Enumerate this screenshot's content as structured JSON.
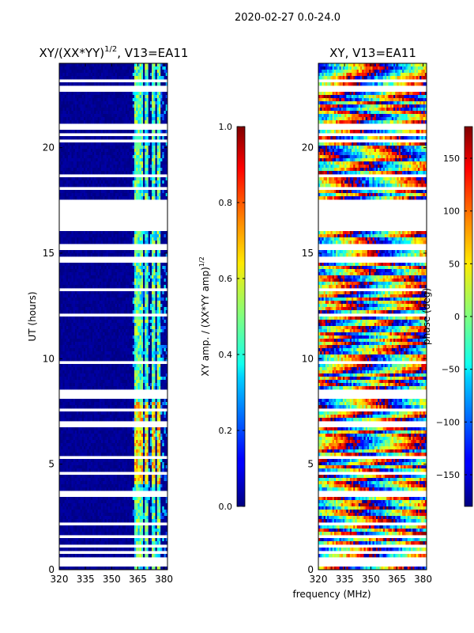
{
  "figure": {
    "suptitle": "2020-02-27 0.0-24.0",
    "shared_xlabel": "frequency (MHz)"
  },
  "chart_data": [
    {
      "type": "heatmap",
      "title": "XY/(XX*YY)",
      "title_superscript": "1/2",
      "title_suffix": ", V13=EA11",
      "xlabel": "",
      "ylabel": "UT (hours)",
      "xlim": [
        320,
        382
      ],
      "ylim": [
        0,
        24
      ],
      "xticks": [
        320,
        335,
        350,
        365,
        380
      ],
      "yticks": [
        0,
        5,
        10,
        15,
        20
      ],
      "colorbar": {
        "label": "XY amp. / (XX*YY amp)",
        "label_superscript": "1/2",
        "range": [
          0,
          1
        ],
        "ticks": [
          "0.0",
          "0.2",
          "0.4",
          "0.6",
          "0.8",
          "1.0"
        ],
        "colormap": "jet"
      },
      "features": {
        "background_value": 0.0,
        "bright_channels_MHz": [
          364,
          365,
          367,
          370,
          374,
          377
        ],
        "data_gap_UT": [
          16.0,
          17.6
        ],
        "flagged_rows_UT": [
          0.3,
          0.45,
          0.85,
          1.1,
          1.55,
          2.2,
          3.6,
          4.6,
          5.3,
          6.9,
          7.6,
          8.2,
          8.4,
          9.8,
          12.1,
          13.3,
          14.7,
          15.3,
          18.1,
          18.7,
          20.3,
          20.6,
          21.0,
          22.8,
          23.2
        ]
      }
    },
    {
      "type": "heatmap",
      "title": "XY, V13=EA11",
      "xlabel": "",
      "ylabel": "",
      "xlim": [
        320,
        382
      ],
      "ylim": [
        0,
        24
      ],
      "xticks": [
        320,
        335,
        350,
        365,
        380
      ],
      "yticks": [
        0,
        5,
        10,
        15,
        20
      ],
      "colorbar": {
        "label": "phase (deg)",
        "range": [
          -180,
          180
        ],
        "ticks": [
          "−150",
          "−100",
          "−50",
          "0",
          "50",
          "100",
          "150"
        ],
        "colormap": "jet"
      },
      "features": {
        "phase_slope_deg_per_MHz": 9,
        "data_gap_UT": [
          16.0,
          17.6
        ],
        "flagged_rows_UT": [
          0.3,
          0.45,
          0.85,
          1.1,
          1.55,
          2.2,
          3.6,
          4.6,
          5.3,
          6.9,
          7.6,
          8.2,
          8.4,
          9.8,
          12.1,
          13.3,
          14.7,
          15.3,
          18.1,
          18.7,
          20.3,
          20.6,
          21.0,
          22.8,
          23.2
        ]
      }
    }
  ]
}
